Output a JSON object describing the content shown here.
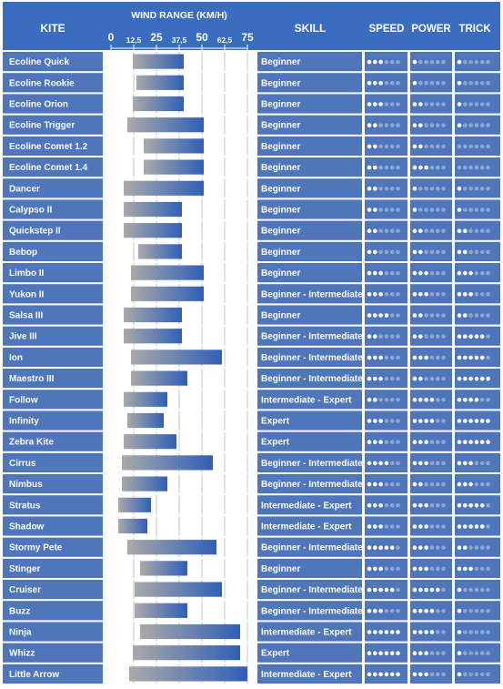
{
  "chart_data": {
    "type": "table",
    "headers": {
      "kite": "KITE",
      "wind_range": "WIND RANGE (KM/H)",
      "skill": "SKILL",
      "speed": "SPEED",
      "power": "POWER",
      "trick": "TRICK"
    },
    "axis": {
      "ticks": [
        "0",
        "12,5",
        "25",
        "37,5",
        "50",
        "62,5",
        "75"
      ],
      "tick_values": [
        0,
        12.5,
        25,
        37.5,
        50,
        62.5,
        75
      ],
      "range": [
        0,
        75
      ]
    },
    "rating_max": 6,
    "colors": {
      "header_bg": "#3a6cc0",
      "row_bg": "#4f76bb",
      "bar_start": "#a9a9a9",
      "bar_end": "#2f5fb7",
      "dot_on": "#ffffff",
      "dot_off": "#8ea6d2"
    },
    "rows": [
      {
        "kite": "Ecoline Quick",
        "wind_min": 12,
        "wind_max": 40,
        "skill": "Beginner",
        "speed": 3,
        "power": 1,
        "trick": 1
      },
      {
        "kite": "Ecoline Rookie",
        "wind_min": 14,
        "wind_max": 40,
        "skill": "Beginner",
        "speed": 3,
        "power": 1,
        "trick": 1
      },
      {
        "kite": "Ecoline Orion",
        "wind_min": 12,
        "wind_max": 40,
        "skill": "Beginner",
        "speed": 3,
        "power": 2,
        "trick": 1
      },
      {
        "kite": "Ecoline Trigger",
        "wind_min": 9,
        "wind_max": 51,
        "skill": "Beginner",
        "speed": 2,
        "power": 2,
        "trick": 1
      },
      {
        "kite": "Ecoline Comet 1.2",
        "wind_min": 18,
        "wind_max": 51,
        "skill": "Beginner",
        "speed": 2,
        "power": 2,
        "trick": 0
      },
      {
        "kite": "Ecoline Comet 1.4",
        "wind_min": 18,
        "wind_max": 51,
        "skill": "Beginner",
        "speed": 2,
        "power": 3,
        "trick": 0
      },
      {
        "kite": "Dancer",
        "wind_min": 7,
        "wind_max": 51,
        "skill": "Beginner",
        "speed": 2,
        "power": 1,
        "trick": 1
      },
      {
        "kite": "Calypso II",
        "wind_min": 7,
        "wind_max": 39,
        "skill": "Beginner",
        "speed": 2,
        "power": 1,
        "trick": 1
      },
      {
        "kite": "Quickstep II",
        "wind_min": 7,
        "wind_max": 39,
        "skill": "Beginner",
        "speed": 2,
        "power": 2,
        "trick": 2
      },
      {
        "kite": "Bebop",
        "wind_min": 15,
        "wind_max": 39,
        "skill": "Beginner",
        "speed": 2,
        "power": 2,
        "trick": 2
      },
      {
        "kite": "Limbo II",
        "wind_min": 11,
        "wind_max": 51,
        "skill": "Beginner",
        "speed": 3,
        "power": 3,
        "trick": 3
      },
      {
        "kite": "Yukon II",
        "wind_min": 11,
        "wind_max": 51,
        "skill": "Beginner - Intermediate",
        "speed": 3,
        "power": 3,
        "trick": 3
      },
      {
        "kite": "Salsa III",
        "wind_min": 7,
        "wind_max": 39,
        "skill": "Beginner",
        "speed": 4,
        "power": 2,
        "trick": 2
      },
      {
        "kite": "Jive III",
        "wind_min": 7,
        "wind_max": 39,
        "skill": "Beginner - Intermediate",
        "speed": 2,
        "power": 2,
        "trick": 5
      },
      {
        "kite": "Ion",
        "wind_min": 11,
        "wind_max": 61,
        "skill": "Beginner - Intermediate",
        "speed": 3,
        "power": 3,
        "trick": 5
      },
      {
        "kite": "Maestro III",
        "wind_min": 11,
        "wind_max": 42,
        "skill": "Beginner - Intermediate",
        "speed": 3,
        "power": 2,
        "trick": 6
      },
      {
        "kite": "Follow",
        "wind_min": 7,
        "wind_max": 31,
        "skill": "Intermediate - Expert",
        "speed": 2,
        "power": 4,
        "trick": 4
      },
      {
        "kite": "Infinity",
        "wind_min": 9,
        "wind_max": 29,
        "skill": "Expert",
        "speed": 3,
        "power": 4,
        "trick": 6
      },
      {
        "kite": "Zebra Kite",
        "wind_min": 7,
        "wind_max": 36,
        "skill": "Expert",
        "speed": 3,
        "power": 3,
        "trick": 6
      },
      {
        "kite": "Cirrus",
        "wind_min": 6,
        "wind_max": 56,
        "skill": "Beginner - Intermediate",
        "speed": 4,
        "power": 3,
        "trick": 3
      },
      {
        "kite": "Nimbus",
        "wind_min": 6,
        "wind_max": 31,
        "skill": "Beginner - Intermediate",
        "speed": 3,
        "power": 2,
        "trick": 3
      },
      {
        "kite": "Stratus",
        "wind_min": 4,
        "wind_max": 22,
        "skill": "Intermediate - Expert",
        "speed": 3,
        "power": 3,
        "trick": 5
      },
      {
        "kite": "Shadow",
        "wind_min": 4,
        "wind_max": 20,
        "skill": "Intermediate - Expert",
        "speed": 3,
        "power": 3,
        "trick": 5
      },
      {
        "kite": "Stormy Pete",
        "wind_min": 9,
        "wind_max": 58,
        "skill": "Beginner - Intermediate",
        "speed": 5,
        "power": 3,
        "trick": 2
      },
      {
        "kite": "Stinger",
        "wind_min": 16,
        "wind_max": 42,
        "skill": "Beginner",
        "speed": 3,
        "power": 3,
        "trick": 3
      },
      {
        "kite": "Cruiser",
        "wind_min": 13,
        "wind_max": 61,
        "skill": "Beginner - Intermediate",
        "speed": 5,
        "power": 5,
        "trick": 1
      },
      {
        "kite": "Buzz",
        "wind_min": 13,
        "wind_max": 42,
        "skill": "Beginner - Intermediate",
        "speed": 3,
        "power": 4,
        "trick": 1
      },
      {
        "kite": "Ninja",
        "wind_min": 16,
        "wind_max": 71,
        "skill": "Intermediate - Expert",
        "speed": 6,
        "power": 4,
        "trick": 1
      },
      {
        "kite": "Whizz",
        "wind_min": 12,
        "wind_max": 71,
        "skill": "Expert",
        "speed": 6,
        "power": 3,
        "trick": 1
      },
      {
        "kite": "Little Arrow",
        "wind_min": 10,
        "wind_max": 75,
        "skill": "Intermediate - Expert",
        "speed": 6,
        "power": 3,
        "trick": 1
      }
    ]
  }
}
